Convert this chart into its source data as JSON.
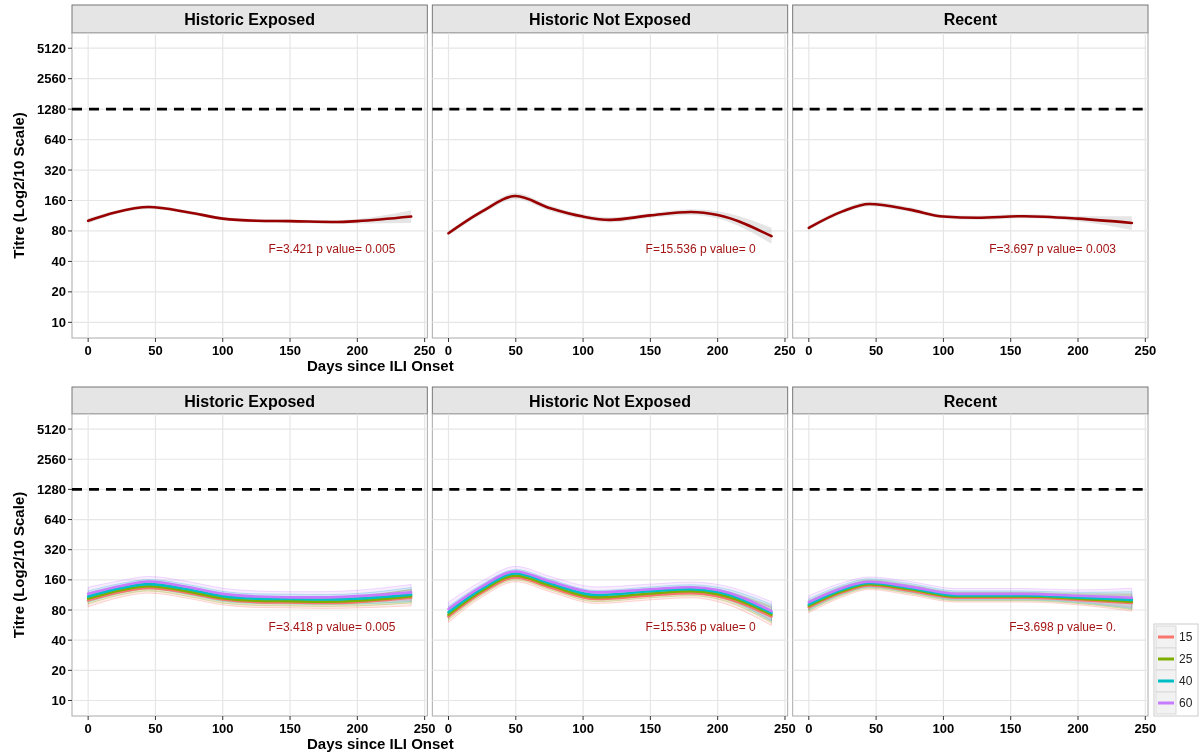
{
  "chart_data": [
    {
      "type": "line",
      "title": "Historic Exposed",
      "ylabel": "Titre (Log2/10 Scale)",
      "xlabel": "Days since ILI Onset",
      "log": true,
      "grid": true,
      "xlim": [
        -12,
        252
      ],
      "xticks": [
        0,
        50,
        100,
        150,
        200,
        250
      ],
      "ylim": [
        7,
        7240
      ],
      "yticks": [
        10,
        20,
        40,
        80,
        160,
        320,
        640,
        1280,
        2560,
        5120
      ],
      "ref_lines": [
        {
          "axis": "y",
          "value": 1280,
          "color": "#000000",
          "line_style": "dashed"
        }
      ],
      "annotations": [
        "F=3.421 p value= 0.005"
      ],
      "series": [
        {
          "color": "#990000",
          "x": [
            0,
            20,
            45,
            75,
            100,
            125,
            150,
            185,
            200,
            240
          ],
          "values": [
            101,
            122,
            138,
            122,
            106,
            101,
            100,
            98,
            100,
            111
          ],
          "lower": [
            95,
            117,
            132,
            117,
            102,
            97,
            96,
            94,
            95,
            96
          ],
          "upper": [
            107,
            127,
            144,
            127,
            110,
            105,
            104,
            102,
            105,
            128
          ]
        }
      ]
    },
    {
      "type": "line",
      "title": "Historic Not Exposed",
      "log": true,
      "grid": true,
      "tick_labels": "x",
      "xlim": [
        -12,
        252
      ],
      "xticks": [
        0,
        50,
        100,
        150,
        200,
        250
      ],
      "ylim": [
        7,
        7240
      ],
      "yticks": [
        10,
        20,
        40,
        80,
        160,
        320,
        640,
        1280,
        2560,
        5120
      ],
      "ref_lines": [
        {
          "axis": "y",
          "value": 1280,
          "color": "#000000",
          "line_style": "dashed"
        }
      ],
      "annotations": [
        "F=15.536 p value= 0"
      ],
      "series": [
        {
          "color": "#990000",
          "x": [
            0,
            25,
            50,
            75,
            100,
            120,
            150,
            180,
            200,
            240
          ],
          "values": [
            76,
            125,
            177,
            135,
            111,
            103,
            114,
            123,
            115,
            71
          ],
          "lower": [
            72,
            118,
            165,
            127,
            105,
            97,
            108,
            115,
            106,
            60
          ],
          "upper": [
            80,
            132,
            190,
            143,
            117,
            109,
            120,
            131,
            125,
            86
          ]
        }
      ]
    },
    {
      "type": "line",
      "title": "Recent",
      "log": true,
      "grid": true,
      "tick_labels": "x",
      "xlim": [
        -12,
        252
      ],
      "xticks": [
        0,
        50,
        100,
        150,
        200,
        250
      ],
      "ylim": [
        7,
        7240
      ],
      "yticks": [
        10,
        20,
        40,
        80,
        160,
        320,
        640,
        1280,
        2560,
        5120
      ],
      "ref_lines": [
        {
          "axis": "y",
          "value": 1280,
          "color": "#000000",
          "line_style": "dashed"
        }
      ],
      "annotations": [
        "F=3.697 p value= 0.003"
      ],
      "series": [
        {
          "color": "#990000",
          "x": [
            0,
            25,
            45,
            75,
            100,
            125,
            160,
            200,
            240
          ],
          "values": [
            86,
            125,
            148,
            130,
            111,
            108,
            112,
            106,
            96
          ],
          "lower": [
            82,
            119,
            140,
            123,
            106,
            103,
            107,
            100,
            82
          ],
          "upper": [
            90,
            131,
            156,
            137,
            116,
            113,
            117,
            112,
            112
          ]
        }
      ]
    },
    {
      "type": "line",
      "title": "Historic Exposed",
      "ylabel": "Titre (Log2/10 Scale)",
      "xlabel": "Days since ILI Onset",
      "log": true,
      "grid": true,
      "xlim": [
        -12,
        252
      ],
      "xticks": [
        0,
        50,
        100,
        150,
        200,
        250
      ],
      "ylim": [
        7,
        7240
      ],
      "yticks": [
        10,
        20,
        40,
        80,
        160,
        320,
        640,
        1280,
        2560,
        5120
      ],
      "ref_lines": [
        {
          "axis": "y",
          "value": 1280,
          "color": "#000000",
          "line_style": "dashed"
        }
      ],
      "annotations": [
        "F=3.418 p value= 0.005"
      ],
      "series": [
        {
          "color": "#f8766d",
          "x": [
            0,
            25,
            45,
            75,
            100,
            125,
            150,
            175,
            200,
            240
          ],
          "values": [
            100,
            122,
            133,
            118,
            102,
            96,
            95,
            94,
            96,
            106
          ],
          "lower": [
            86,
            108,
            118,
            104,
            90,
            85,
            84,
            83,
            84,
            88
          ],
          "upper": [
            116,
            138,
            150,
            134,
            116,
            109,
            108,
            107,
            110,
            128
          ]
        },
        {
          "color": "#7cae00",
          "x": [
            0,
            25,
            45,
            75,
            100,
            125,
            150,
            175,
            200,
            240
          ],
          "values": [
            104,
            127,
            138,
            122,
            105,
            99,
            98,
            97,
            99,
            110
          ],
          "lower": [
            92,
            114,
            124,
            109,
            94,
            89,
            88,
            87,
            88,
            94
          ],
          "upper": [
            118,
            141,
            153,
            136,
            117,
            110,
            109,
            108,
            111,
            128
          ]
        },
        {
          "color": "#00bfc4",
          "x": [
            0,
            25,
            45,
            75,
            100,
            125,
            150,
            175,
            200,
            240
          ],
          "values": [
            109,
            133,
            145,
            128,
            110,
            104,
            103,
            102,
            104,
            114
          ],
          "lower": [
            96,
            119,
            130,
            114,
            98,
            93,
            92,
            91,
            92,
            97
          ],
          "upper": [
            124,
            148,
            161,
            143,
            123,
            116,
            115,
            114,
            117,
            134
          ]
        },
        {
          "color": "#c77cff",
          "x": [
            0,
            25,
            45,
            75,
            100,
            125,
            150,
            175,
            200,
            240
          ],
          "values": [
            116,
            140,
            154,
            135,
            116,
            109,
            107,
            107,
            110,
            120
          ],
          "lower": [
            100,
            124,
            137,
            119,
            102,
            96,
            94,
            94,
            96,
            100
          ],
          "upper": [
            135,
            158,
            173,
            153,
            132,
            124,
            122,
            122,
            126,
            144
          ]
        }
      ]
    },
    {
      "type": "line",
      "title": "Historic Not Exposed",
      "log": true,
      "grid": true,
      "tick_labels": "x",
      "xlim": [
        -12,
        252
      ],
      "xticks": [
        0,
        50,
        100,
        150,
        200,
        250
      ],
      "ylim": [
        7,
        7240
      ],
      "yticks": [
        10,
        20,
        40,
        80,
        160,
        320,
        640,
        1280,
        2560,
        5120
      ],
      "ref_lines": [
        {
          "axis": "y",
          "value": 1280,
          "color": "#000000",
          "line_style": "dashed"
        }
      ],
      "annotations": [
        "F=15.536 p value= 0"
      ],
      "series": [
        {
          "color": "#f8766d",
          "x": [
            0,
            25,
            50,
            75,
            110,
            150,
            180,
            200,
            240
          ],
          "values": [
            69,
            120,
            169,
            135,
            103,
            112,
            118,
            110,
            69
          ],
          "lower": [
            60,
            108,
            153,
            122,
            93,
            101,
            106,
            97,
            56
          ],
          "upper": [
            80,
            133,
            186,
            149,
            114,
            124,
            131,
            124,
            85
          ]
        },
        {
          "color": "#7cae00",
          "x": [
            0,
            25,
            50,
            75,
            110,
            150,
            180,
            200,
            240
          ],
          "values": [
            72,
            125,
            176,
            141,
            107,
            117,
            123,
            115,
            72
          ],
          "lower": [
            64,
            113,
            160,
            128,
            97,
            106,
            111,
            103,
            60
          ],
          "upper": [
            82,
            138,
            193,
            155,
            118,
            129,
            136,
            128,
            87
          ]
        },
        {
          "color": "#00bfc4",
          "x": [
            0,
            25,
            50,
            75,
            110,
            150,
            180,
            200,
            240
          ],
          "values": [
            76,
            131,
            185,
            148,
            113,
            123,
            129,
            121,
            75
          ],
          "lower": [
            67,
            118,
            168,
            134,
            102,
            111,
            116,
            108,
            62
          ],
          "upper": [
            87,
            145,
            203,
            163,
            125,
            136,
            143,
            135,
            91
          ]
        },
        {
          "color": "#c77cff",
          "x": [
            0,
            25,
            50,
            75,
            110,
            150,
            180,
            200,
            240
          ],
          "values": [
            82,
            138,
            194,
            155,
            120,
            129,
            135,
            127,
            78
          ],
          "lower": [
            70,
            122,
            173,
            138,
            106,
            115,
            120,
            112,
            63
          ],
          "upper": [
            96,
            156,
            218,
            174,
            136,
            145,
            152,
            144,
            97
          ]
        }
      ]
    },
    {
      "type": "line",
      "title": "Recent",
      "log": true,
      "grid": true,
      "tick_labels": "x",
      "legend": "bottom right",
      "xlim": [
        -12,
        252
      ],
      "xticks": [
        0,
        50,
        100,
        150,
        200,
        250
      ],
      "ylim": [
        7,
        7240
      ],
      "yticks": [
        10,
        20,
        40,
        80,
        160,
        320,
        640,
        1280,
        2560,
        5120
      ],
      "ref_lines": [
        {
          "axis": "y",
          "value": 1280,
          "color": "#000000",
          "line_style": "dashed"
        }
      ],
      "annotations": [
        "F=3.698 p value= 0."
      ],
      "series": [
        {
          "name": "15",
          "color": "#f8766d",
          "x": [
            0,
            25,
            45,
            75,
            110,
            160,
            200,
            240
          ],
          "values": [
            85,
            120,
            141,
            125,
            106,
            106,
            101,
            94
          ],
          "lower": [
            75,
            108,
            128,
            113,
            96,
            96,
            90,
            78
          ],
          "upper": [
            96,
            133,
            155,
            138,
            117,
            117,
            113,
            113
          ]
        },
        {
          "name": "25",
          "color": "#7cae00",
          "x": [
            0,
            25,
            45,
            75,
            110,
            160,
            200,
            240
          ],
          "values": [
            88,
            124,
            145,
            129,
            109,
            109,
            104,
            97
          ],
          "lower": [
            78,
            112,
            132,
            117,
            99,
            99,
            93,
            81
          ],
          "upper": [
            99,
            137,
            159,
            142,
            120,
            120,
            116,
            116
          ]
        },
        {
          "name": "40",
          "color": "#00bfc4",
          "x": [
            0,
            25,
            45,
            75,
            110,
            160,
            200,
            240
          ],
          "values": [
            91,
            128,
            149,
            133,
            112,
            112,
            107,
            101
          ],
          "lower": [
            80,
            115,
            135,
            120,
            101,
            101,
            95,
            83
          ],
          "upper": [
            103,
            142,
            164,
            147,
            124,
            124,
            120,
            122
          ]
        },
        {
          "name": "60",
          "color": "#c77cff",
          "x": [
            0,
            25,
            45,
            75,
            110,
            160,
            200,
            240
          ],
          "values": [
            96,
            133,
            153,
            137,
            116,
            116,
            111,
            106
          ],
          "lower": [
            83,
            118,
            137,
            122,
            103,
            103,
            97,
            85
          ],
          "upper": [
            111,
            150,
            171,
            154,
            131,
            131,
            127,
            132
          ]
        }
      ]
    }
  ]
}
